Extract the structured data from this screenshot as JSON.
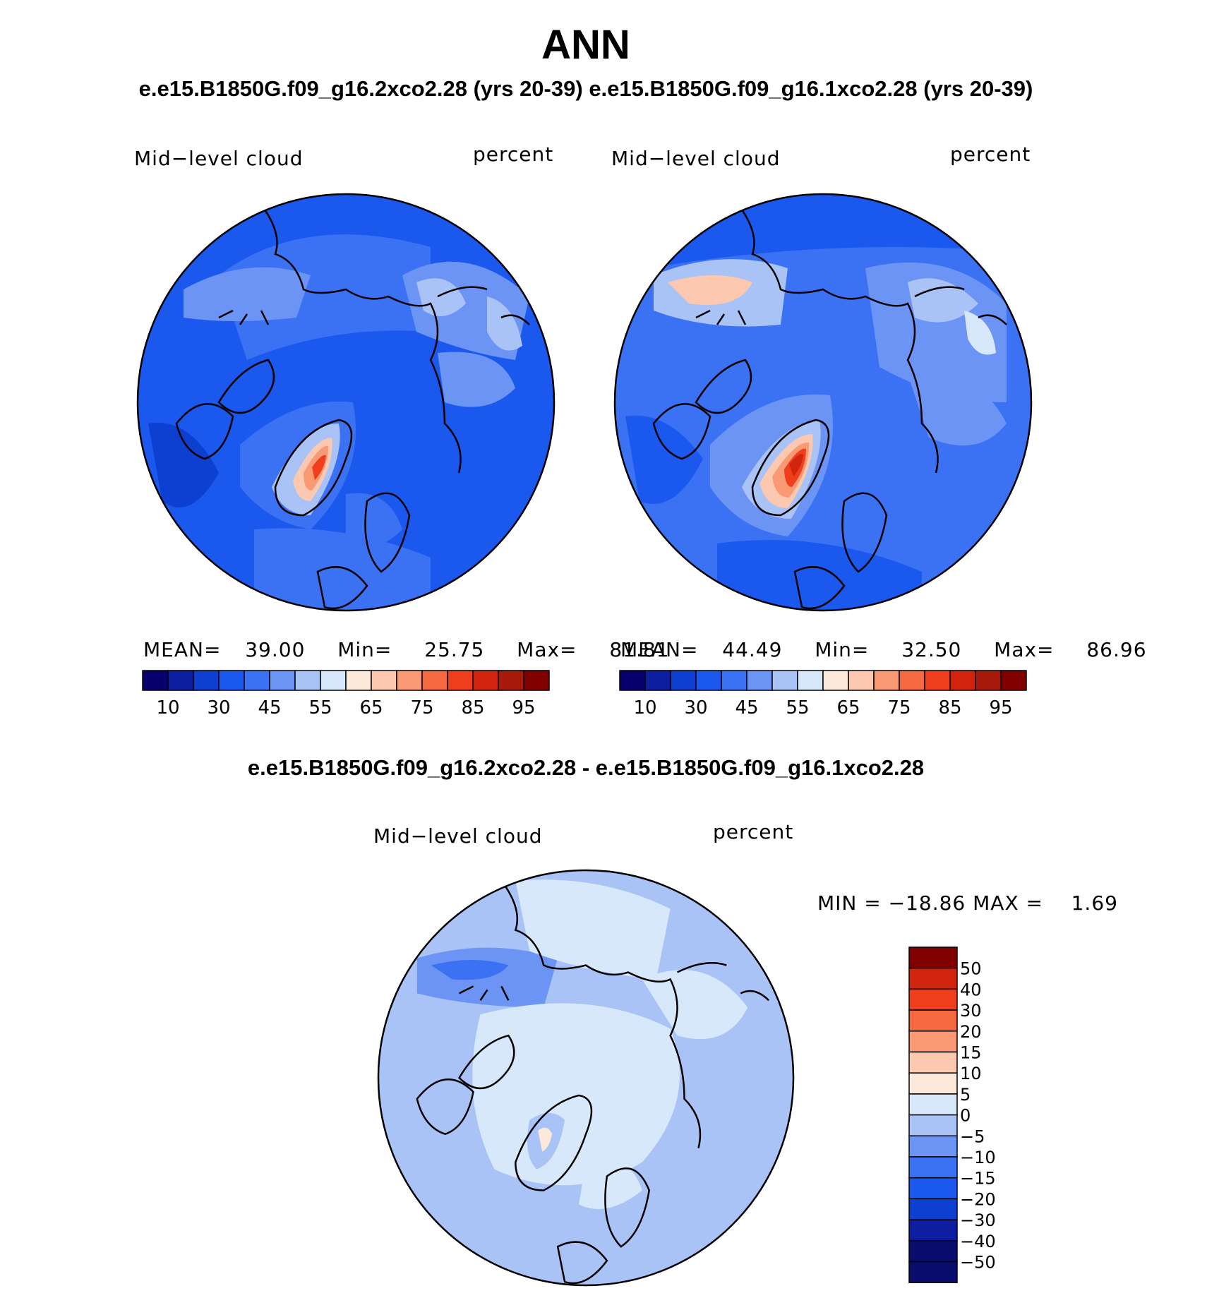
{
  "title": "ANN",
  "top_subtitle_left": "e.e15.B1850G.f09_g16.2xco2.28 (yrs 20-39)",
  "top_subtitle_right": "e.e15.B1850G.f09_g16.1xco2.28 (yrs 20-39)",
  "diff_title": "e.e15.B1850G.f09_g16.2xco2.28 - e.e15.B1850G.f09_g16.1xco2.28",
  "colors": {
    "abs_palette": [
      "#08006d",
      "#0d1ea0",
      "#0d3fd0",
      "#1a58ee",
      "#3b72f4",
      "#6c94f4",
      "#a9c3f7",
      "#d8e8fb",
      "#fde9da",
      "#fcc9b0",
      "#f99a75",
      "#f4693f",
      "#ee3e1c",
      "#d2240c",
      "#a81b0b",
      "#800000"
    ],
    "diff_palette": [
      "#0a0d6e",
      "#0d1ea0",
      "#0d3fd0",
      "#1a58ee",
      "#3b72f4",
      "#6c94f4",
      "#a9c3f7",
      "#d8e8fb",
      "#fde9da",
      "#fcc9b0",
      "#f99a75",
      "#f4693f",
      "#ee3e1c",
      "#d2240c",
      "#800000"
    ]
  },
  "panels": [
    {
      "id": "2xco2",
      "variable": "Mid−level cloud",
      "units": "percent",
      "stats": {
        "mean_label": "MEAN=",
        "mean": "39.00",
        "min_label": "Min=",
        "min": "25.75",
        "max_label": "Max=",
        "max": "81.81"
      },
      "colorbar_labels": [
        "10",
        "30",
        "45",
        "55",
        "65",
        "75",
        "85",
        "95"
      ],
      "anomaly_intensity": 0.55
    },
    {
      "id": "1xco2",
      "variable": "Mid−level cloud",
      "units": "percent",
      "stats": {
        "mean_label": "MEAN=",
        "mean": "44.49",
        "min_label": "Min=",
        "min": "32.50",
        "max_label": "Max=",
        "max": "86.96"
      },
      "colorbar_labels": [
        "10",
        "30",
        "45",
        "55",
        "65",
        "75",
        "85",
        "95"
      ],
      "anomaly_intensity": 0.85
    }
  ],
  "diff_panel": {
    "variable": "Mid−level cloud",
    "units": "percent",
    "minmax": "MIN = −18.86 MAX =    1.69",
    "colorbar_labels": [
      "50",
      "40",
      "30",
      "20",
      "15",
      "10",
      "5",
      "0",
      "−5",
      "−10",
      "−15",
      "−20",
      "−30",
      "−40",
      "−50"
    ]
  }
}
